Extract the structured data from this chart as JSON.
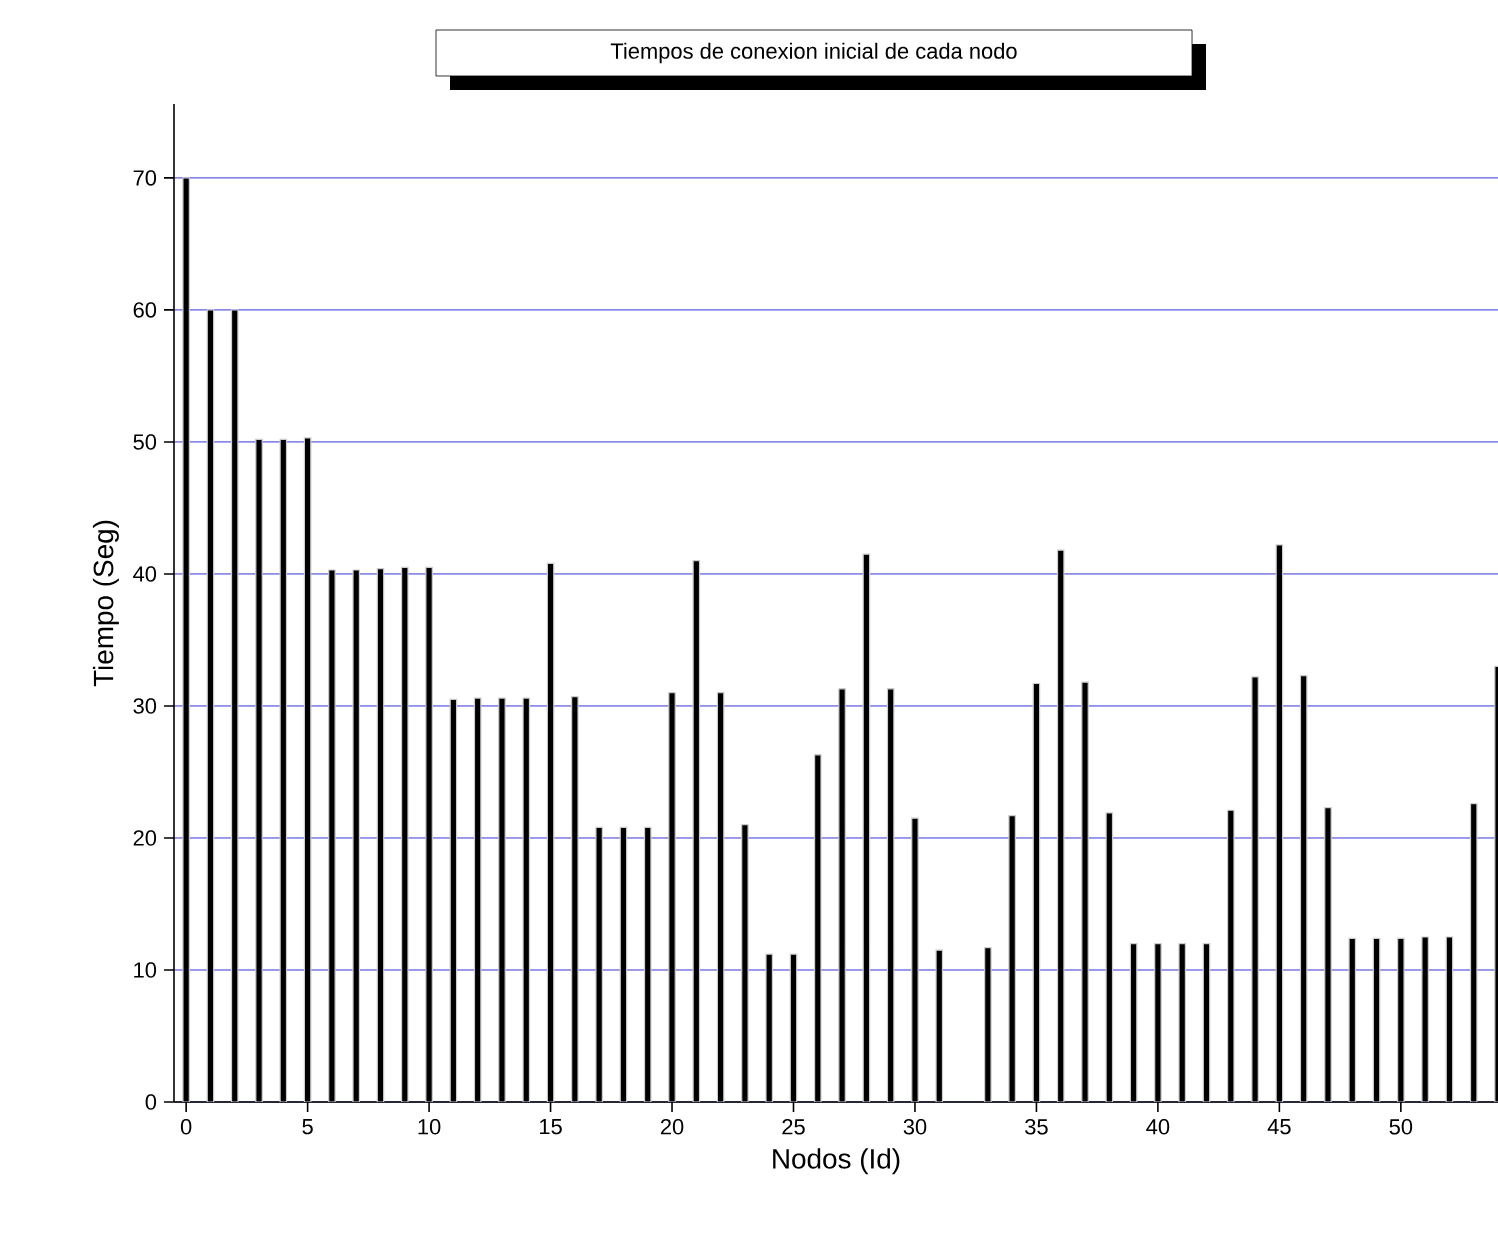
{
  "chart_data": {
    "type": "bar",
    "title": "Tiempos de conexion inicial de cada nodo",
    "xlabel": "Nodos (Id)",
    "ylabel": "Tiempo (Seg)",
    "x": [
      0,
      1,
      2,
      3,
      4,
      5,
      6,
      7,
      8,
      9,
      10,
      11,
      12,
      13,
      14,
      15,
      16,
      17,
      18,
      19,
      20,
      21,
      22,
      23,
      24,
      25,
      26,
      27,
      28,
      29,
      30,
      31,
      32,
      33,
      34,
      35,
      36,
      37,
      38,
      39,
      40,
      41,
      42,
      43,
      44,
      45,
      46,
      47,
      48,
      49,
      50,
      51,
      52,
      53,
      54
    ],
    "values": [
      70,
      60,
      60,
      50.2,
      50.2,
      50.3,
      40.3,
      40.3,
      40.4,
      40.5,
      40.5,
      30.5,
      30.6,
      30.6,
      30.6,
      40.8,
      30.7,
      20.8,
      20.8,
      20.8,
      31,
      41,
      31,
      21,
      11.2,
      11.2,
      26.3,
      31.3,
      41.5,
      31.3,
      21.5,
      11.5,
      null,
      11.7,
      21.7,
      31.7,
      41.8,
      31.8,
      21.9,
      12,
      12,
      12,
      12,
      22.1,
      32.2,
      42.2,
      32.3,
      22.3,
      12.4,
      12.4,
      12.4,
      12.5,
      12.5,
      22.6,
      33
    ],
    "color": "#000000",
    "xlim": [
      -0.5,
      54
    ],
    "ylim": [
      0,
      75.6
    ],
    "xticks": [
      0,
      5,
      10,
      15,
      20,
      25,
      30,
      35,
      40,
      45,
      50
    ],
    "yticks": [
      0,
      10,
      20,
      30,
      40,
      50,
      60,
      70
    ],
    "grid": "y"
  }
}
